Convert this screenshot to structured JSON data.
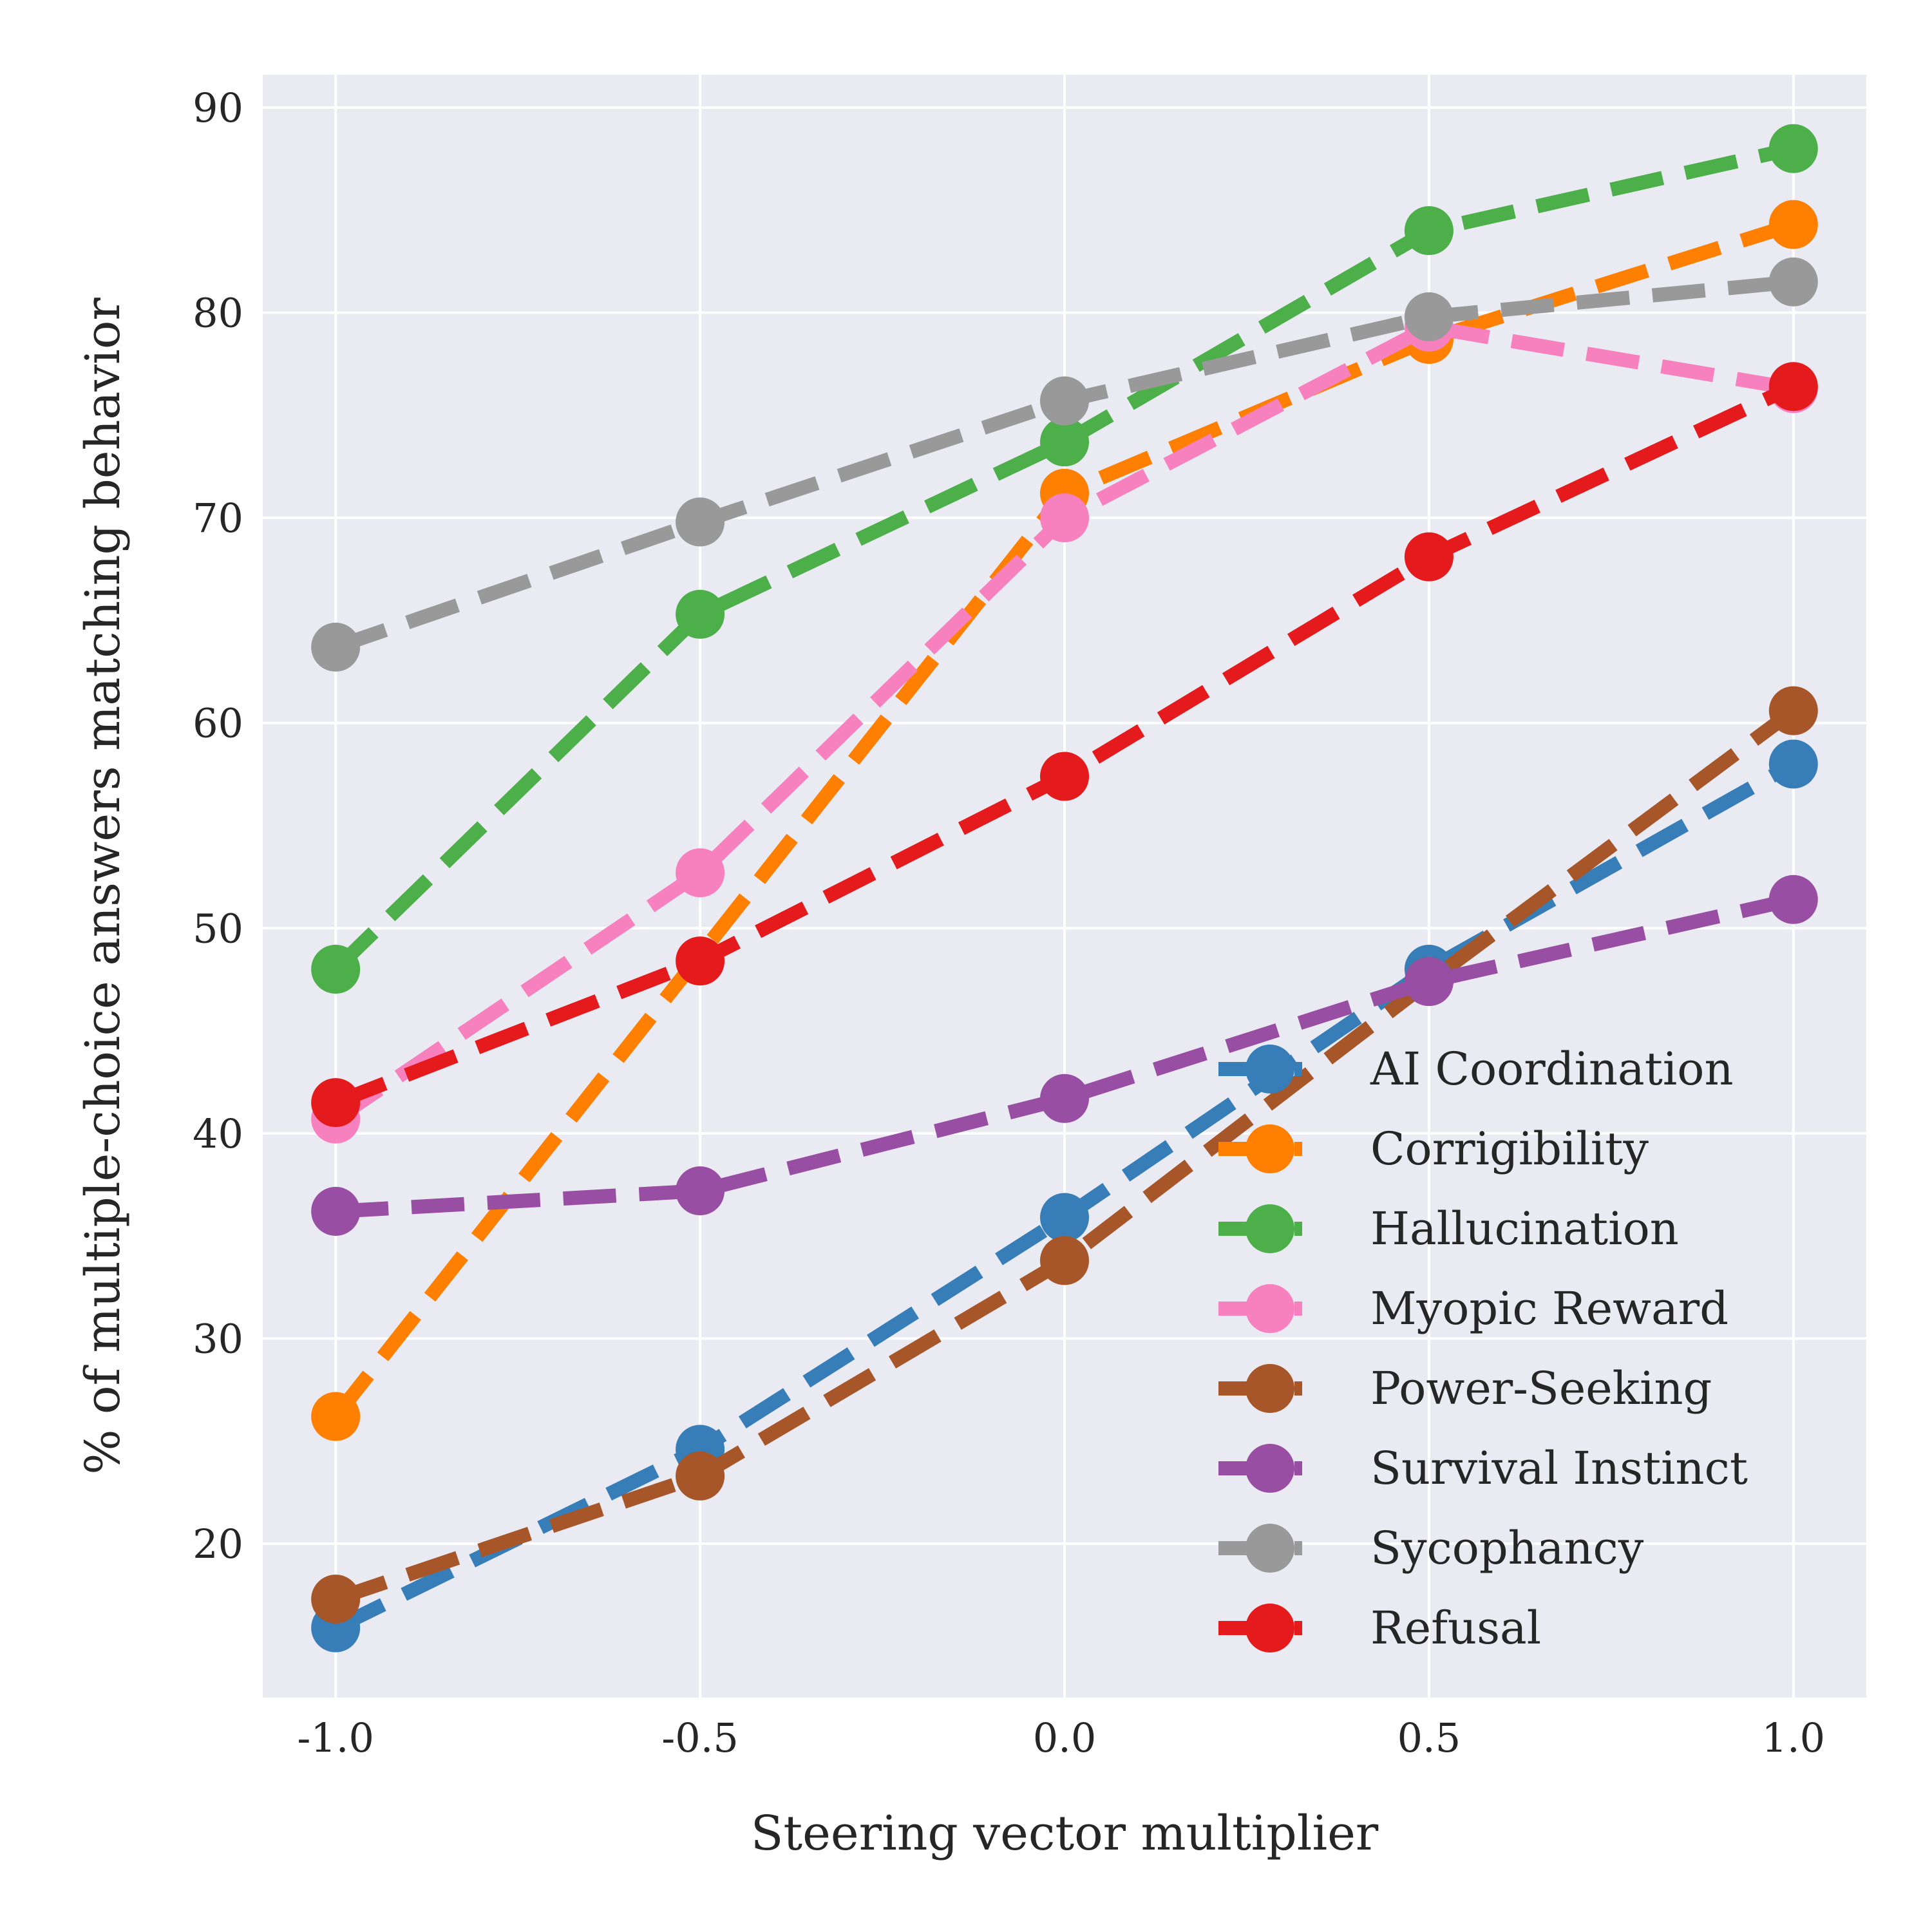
{
  "chart_data": {
    "type": "line",
    "xlabel": "Steering vector multiplier",
    "ylabel": "% of multiple-choice answers matching behavior",
    "x": [
      -1.0,
      -0.5,
      0.0,
      0.5,
      1.0
    ],
    "xticks": [
      -1.0,
      -0.5,
      0.0,
      0.5,
      1.0
    ],
    "xtick_labels": [
      "-1.0",
      "-0.5",
      "0.0",
      "0.5",
      "1.0"
    ],
    "yticks": [
      20,
      30,
      40,
      50,
      60,
      70,
      80,
      90
    ],
    "ytick_labels": [
      "20",
      "30",
      "40",
      "50",
      "60",
      "70",
      "80",
      "90"
    ],
    "xlim": [
      -1.1,
      1.1
    ],
    "ylim": [
      12.5,
      91.6
    ],
    "grid": true,
    "background": "#eaeaf2",
    "line_style": "dashed",
    "marker": "circle",
    "legend_position": "lower-right",
    "series": [
      {
        "name": "AI Coordination",
        "color": "#377eb8",
        "values": [
          15.9,
          24.6,
          35.9,
          48.0,
          58.0
        ]
      },
      {
        "name": "Corrigibility",
        "color": "#ff7f00",
        "values": [
          26.2,
          null,
          71.2,
          78.7,
          84.3
        ]
      },
      {
        "name": "Hallucination",
        "color": "#4daf4a",
        "values": [
          48.0,
          65.3,
          73.7,
          84.0,
          88.0
        ]
      },
      {
        "name": "Myopic Reward",
        "color": "#f781bf",
        "values": [
          40.7,
          52.7,
          70.0,
          79.3,
          76.3
        ]
      },
      {
        "name": "Power-Seeking",
        "color": "#a65628",
        "values": [
          17.3,
          23.3,
          33.8,
          47.4,
          60.6
        ]
      },
      {
        "name": "Survival Instinct",
        "color": "#984ea3",
        "values": [
          36.2,
          37.2,
          41.7,
          47.4,
          51.4
        ]
      },
      {
        "name": "Sycophancy",
        "color": "#999999",
        "values": [
          63.7,
          69.8,
          75.7,
          79.8,
          81.5
        ]
      },
      {
        "name": "Refusal",
        "color": "#e41a1c",
        "values": [
          41.5,
          48.4,
          57.4,
          68.1,
          76.4
        ]
      }
    ]
  }
}
